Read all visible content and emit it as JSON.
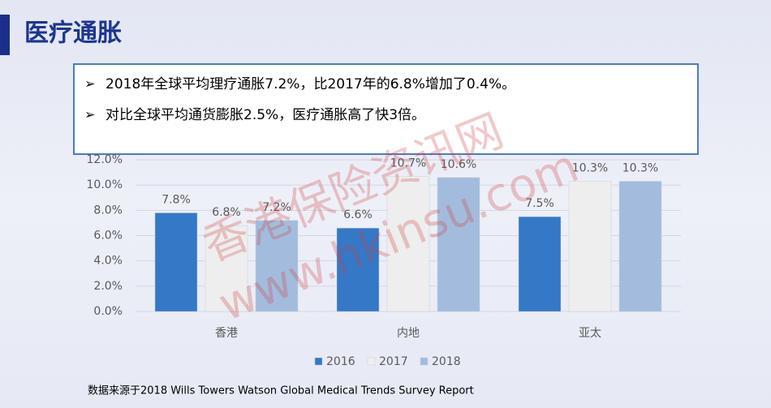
{
  "title": "医疗通胀",
  "bullets": [
    "2018年全球平均理疗通胀7.2%，比2017年的6.8%增加了0.4%。",
    "对比全球平均通货膨胀2.5%，医疗通胀高了快3倍。"
  ],
  "chart_data": {
    "type": "bar",
    "categories": [
      "香港",
      "内地",
      "亚太"
    ],
    "series": [
      {
        "name": "2016",
        "color": "#3478c6",
        "values": [
          7.8,
          6.6,
          7.5
        ],
        "value_labels": [
          "7.8%",
          "6.6%",
          "7.5%"
        ]
      },
      {
        "name": "2017",
        "color": "#eeeeee",
        "values": [
          6.8,
          10.7,
          10.3
        ],
        "value_labels": [
          "6.8%",
          "10.7%",
          "10.3%"
        ]
      },
      {
        "name": "2018",
        "color": "#a3bcdd",
        "values": [
          7.2,
          10.6,
          10.3
        ],
        "value_labels": [
          "7.2%",
          "10.6%",
          "10.3%"
        ]
      }
    ],
    "ylim": [
      0,
      12
    ],
    "yticks": [
      {
        "value": 0,
        "label": "0.0%"
      },
      {
        "value": 2,
        "label": "2.0%"
      },
      {
        "value": 4,
        "label": "4.0%"
      },
      {
        "value": 6,
        "label": "6.0%"
      },
      {
        "value": 8,
        "label": "8.0%"
      },
      {
        "value": 10,
        "label": "10.0%"
      },
      {
        "value": 12,
        "label": "12.0%"
      }
    ],
    "grid": true,
    "legend": "bottom"
  },
  "source": "数据来源于2018 Wills Towers Watson Global Medical Trends Survey Report",
  "watermark": [
    "香港保险资讯网",
    "www.hkinsu.com"
  ]
}
